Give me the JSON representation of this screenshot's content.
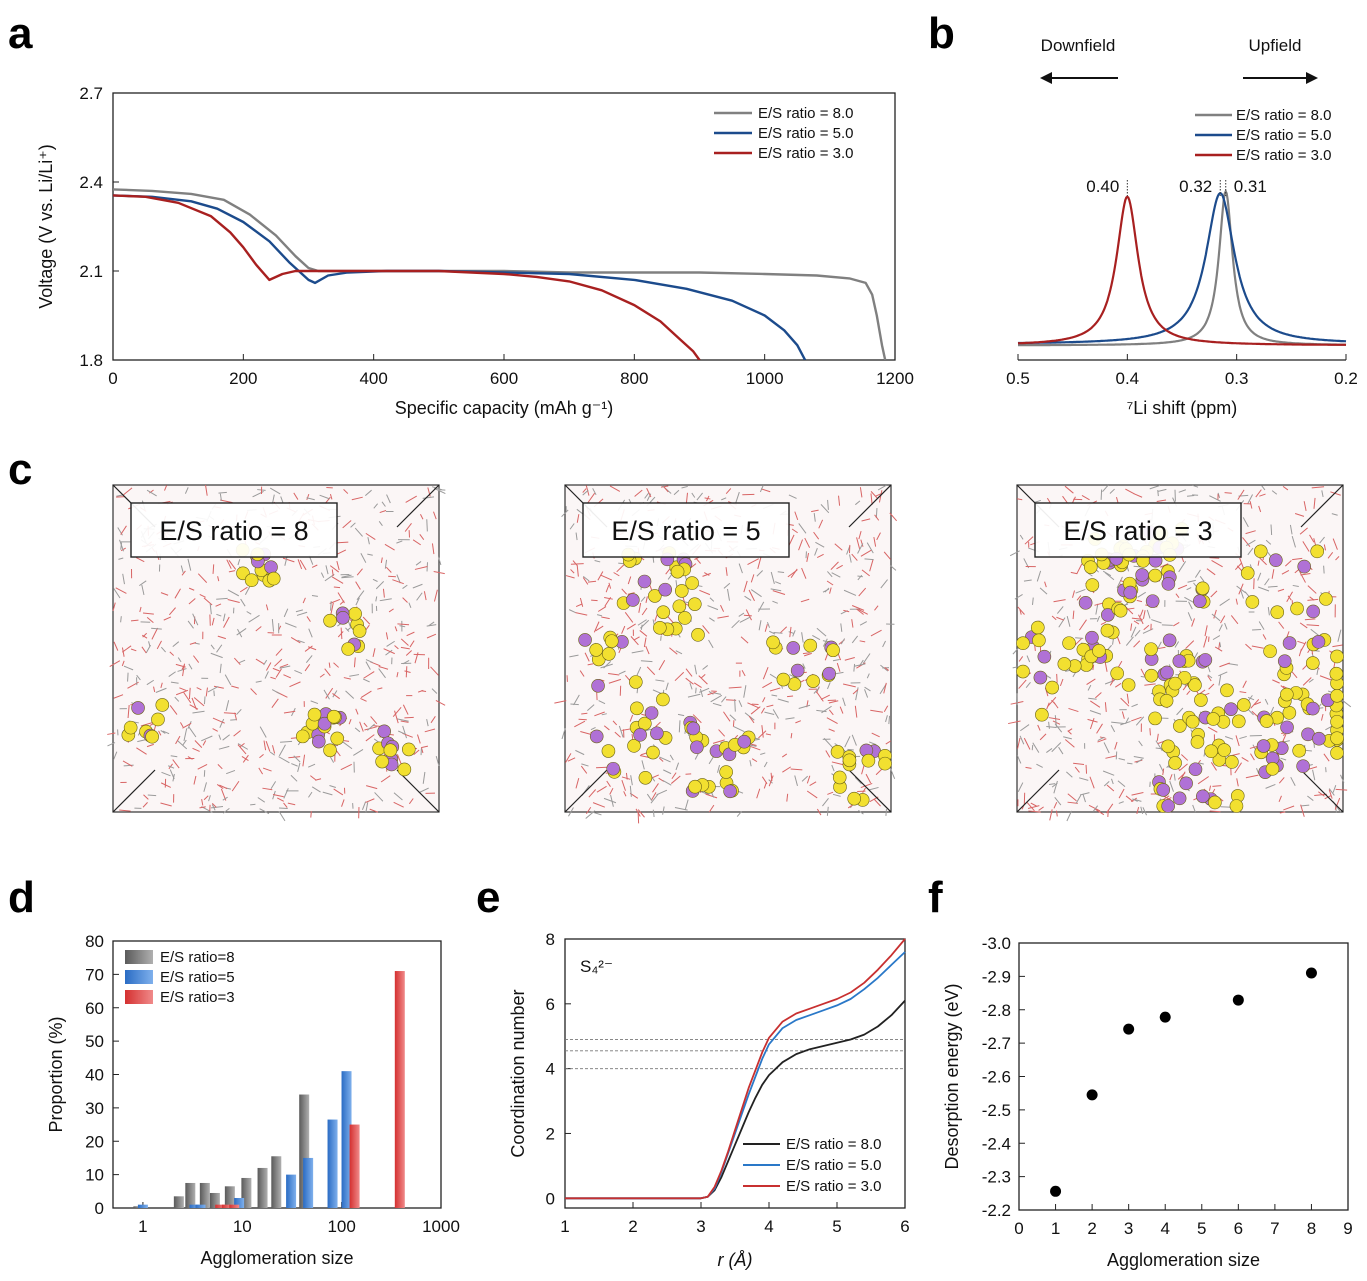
{
  "panels": {
    "a": "a",
    "b": "b",
    "c": "c",
    "d": "d",
    "e": "e",
    "f": "f"
  },
  "colors": {
    "es8": "#808080",
    "es5": "#1c4b8c",
    "es3": "#a82020",
    "bar8": "#5a5a5a",
    "bar5": "#2a6cc4",
    "bar3": "#d43030",
    "e8": "#222222",
    "e5": "#2a78c8",
    "e3": "#c83030",
    "lithium": "#b071d6",
    "sulfur": "#f2e030"
  },
  "c_labels": [
    "E/S ratio = 8",
    "E/S ratio = 5",
    "E/S ratio = 3"
  ],
  "chart_data": [
    {
      "id": "a",
      "type": "line",
      "title": "",
      "xlabel": "Specific capacity (mAh g⁻¹)",
      "ylabel": "Voltage (V vs. Li/Li⁺)",
      "xlim": [
        0,
        1200
      ],
      "ylim": [
        1.8,
        2.7
      ],
      "xticks": [
        "0",
        "200",
        "400",
        "600",
        "800",
        "1000",
        "1200"
      ],
      "yticks": [
        "1.8",
        "2.1",
        "2.4",
        "2.7"
      ],
      "legend_position": "top-right",
      "series": [
        {
          "name": "E/S ratio = 8.0",
          "x": [
            0,
            60,
            120,
            170,
            210,
            250,
            280,
            300,
            315,
            330,
            360,
            420,
            500,
            600,
            700,
            800,
            900,
            1000,
            1080,
            1130,
            1155,
            1165,
            1172,
            1180,
            1185
          ],
          "y": [
            2.375,
            2.37,
            2.36,
            2.34,
            2.29,
            2.22,
            2.15,
            2.11,
            2.1,
            2.1,
            2.1,
            2.1,
            2.1,
            2.1,
            2.095,
            2.095,
            2.095,
            2.09,
            2.085,
            2.075,
            2.06,
            2.02,
            1.95,
            1.85,
            1.8
          ]
        },
        {
          "name": "E/S ratio = 5.0",
          "x": [
            0,
            60,
            120,
            160,
            200,
            240,
            270,
            300,
            310,
            330,
            360,
            420,
            500,
            600,
            700,
            800,
            880,
            950,
            1000,
            1030,
            1050,
            1062
          ],
          "y": [
            2.355,
            2.35,
            2.335,
            2.31,
            2.265,
            2.2,
            2.13,
            2.07,
            2.06,
            2.085,
            2.095,
            2.1,
            2.1,
            2.095,
            2.09,
            2.07,
            2.04,
            2.0,
            1.95,
            1.9,
            1.85,
            1.8
          ]
        },
        {
          "name": "E/S ratio = 3.0",
          "x": [
            0,
            50,
            100,
            150,
            180,
            200,
            220,
            240,
            260,
            280,
            320,
            400,
            500,
            600,
            650,
            700,
            750,
            800,
            840,
            870,
            890,
            900
          ],
          "y": [
            2.355,
            2.35,
            2.33,
            2.285,
            2.23,
            2.18,
            2.12,
            2.07,
            2.09,
            2.1,
            2.1,
            2.1,
            2.1,
            2.09,
            2.08,
            2.065,
            2.035,
            1.985,
            1.93,
            1.87,
            1.83,
            1.8
          ]
        }
      ]
    },
    {
      "id": "b",
      "type": "line",
      "title": "",
      "xlabel": "⁷Li shift (ppm)",
      "ylabel": "",
      "xlim": [
        0.5,
        0.2
      ],
      "xticks": [
        "0.5",
        "0.4",
        "0.3",
        "0.2"
      ],
      "legend_position": "top-right",
      "annotations": {
        "downfield": "Downfield",
        "upfield": "Upfield",
        "peak3": "0.40",
        "peak5": "0.32",
        "peak8": "0.31"
      },
      "series": [
        {
          "name": "E/S ratio = 8.0",
          "peak": 0.31,
          "width": 0.0075,
          "height": 1.0
        },
        {
          "name": "E/S ratio = 5.0",
          "peak": 0.315,
          "width": 0.016,
          "height": 0.98
        },
        {
          "name": "E/S ratio = 3.0",
          "peak": 0.4,
          "width": 0.012,
          "height": 0.965
        }
      ]
    },
    {
      "id": "d",
      "type": "bar",
      "title": "",
      "xlabel": "Agglomeration size",
      "ylabel": "Proportion (%)",
      "xscale": "log",
      "xlim": [
        0.5,
        1000
      ],
      "ylim": [
        0,
        80
      ],
      "xticks": [
        "1",
        "10",
        "100",
        "1000"
      ],
      "yticks": [
        "0",
        "10",
        "20",
        "30",
        "40",
        "50",
        "60",
        "70",
        "80"
      ],
      "legend_position": "top-left",
      "series": [
        {
          "name": "E/S ratio=8",
          "x": [
            0.9,
            2.3,
            3.0,
            4.2,
            5.3,
            7.5,
            11,
            16,
            22,
            42
          ],
          "values": [
            0.5,
            3.5,
            7.5,
            7.5,
            4.5,
            6.5,
            9,
            12,
            15.5,
            34
          ]
        },
        {
          "name": "E/S ratio=5",
          "x": [
            1.0,
            3.3,
            3.8,
            9.3,
            31,
            46,
            81,
            112
          ],
          "values": [
            1,
            1,
            1,
            3,
            10,
            15,
            26.5,
            41
          ]
        },
        {
          "name": "E/S ratio=3",
          "x": [
            6.0,
            7.0,
            8.3,
            135,
            385
          ],
          "values": [
            1,
            1,
            1,
            25,
            71
          ]
        }
      ]
    },
    {
      "id": "e",
      "type": "line",
      "title": "",
      "xlabel": "r (Å)",
      "ylabel": "Coordination number",
      "xlim": [
        1,
        6
      ],
      "ylim": [
        -0.3,
        8
      ],
      "xticks": [
        "1",
        "2",
        "3",
        "4",
        "5",
        "6"
      ],
      "yticks": [
        "0",
        "2",
        "4",
        "6",
        "8"
      ],
      "legend_position": "bottom-right",
      "annotation": "S₄²⁻",
      "reference_lines": [
        4.0,
        4.55,
        4.9
      ],
      "series": [
        {
          "name": "E/S ratio = 8.0",
          "x": [
            1,
            3.0,
            3.1,
            3.2,
            3.3,
            3.4,
            3.5,
            3.6,
            3.7,
            3.8,
            3.9,
            4.0,
            4.2,
            4.4,
            4.6,
            4.8,
            5.0,
            5.2,
            5.4,
            5.6,
            5.8,
            6.0
          ],
          "y": [
            0,
            0,
            0.05,
            0.25,
            0.65,
            1.15,
            1.65,
            2.15,
            2.65,
            3.1,
            3.5,
            3.8,
            4.2,
            4.45,
            4.6,
            4.7,
            4.8,
            4.9,
            5.05,
            5.3,
            5.65,
            6.1
          ]
        },
        {
          "name": "E/S ratio = 5.0",
          "x": [
            1,
            3.0,
            3.1,
            3.2,
            3.3,
            3.4,
            3.5,
            3.6,
            3.7,
            3.8,
            3.9,
            4.0,
            4.2,
            4.4,
            4.6,
            4.8,
            5.0,
            5.2,
            5.4,
            5.6,
            5.8,
            6.0
          ],
          "y": [
            0,
            0,
            0.05,
            0.3,
            0.8,
            1.4,
            2.0,
            2.6,
            3.2,
            3.75,
            4.3,
            4.75,
            5.25,
            5.5,
            5.65,
            5.8,
            5.95,
            6.15,
            6.45,
            6.8,
            7.2,
            7.6
          ]
        },
        {
          "name": "E/S ratio = 3.0",
          "x": [
            1,
            3.0,
            3.1,
            3.2,
            3.3,
            3.4,
            3.5,
            3.6,
            3.7,
            3.8,
            3.9,
            4.0,
            4.2,
            4.4,
            4.6,
            4.8,
            5.0,
            5.2,
            5.4,
            5.6,
            5.8,
            6.0
          ],
          "y": [
            0,
            0,
            0.05,
            0.35,
            0.85,
            1.45,
            2.1,
            2.75,
            3.4,
            3.95,
            4.5,
            4.95,
            5.45,
            5.7,
            5.85,
            6.0,
            6.15,
            6.35,
            6.65,
            7.05,
            7.5,
            8.0
          ]
        }
      ]
    },
    {
      "id": "f",
      "type": "scatter",
      "title": "",
      "xlabel": "Agglomeration size",
      "ylabel": "Desorption energy (eV)",
      "xlim": [
        0,
        9
      ],
      "ylim": [
        -2.2,
        -3.0
      ],
      "xticks": [
        "0",
        "1",
        "2",
        "3",
        "4",
        "5",
        "6",
        "7",
        "8",
        "9"
      ],
      "yticks": [
        "-2.2",
        "-2.3",
        "-2.4",
        "-2.5",
        "-2.6",
        "-2.7",
        "-2.8",
        "-2.9",
        "-3.0"
      ],
      "x": [
        1,
        2,
        3,
        4,
        6,
        8
      ],
      "y": [
        -2.256,
        -2.545,
        -2.742,
        -2.778,
        -2.829,
        -2.91
      ]
    }
  ]
}
